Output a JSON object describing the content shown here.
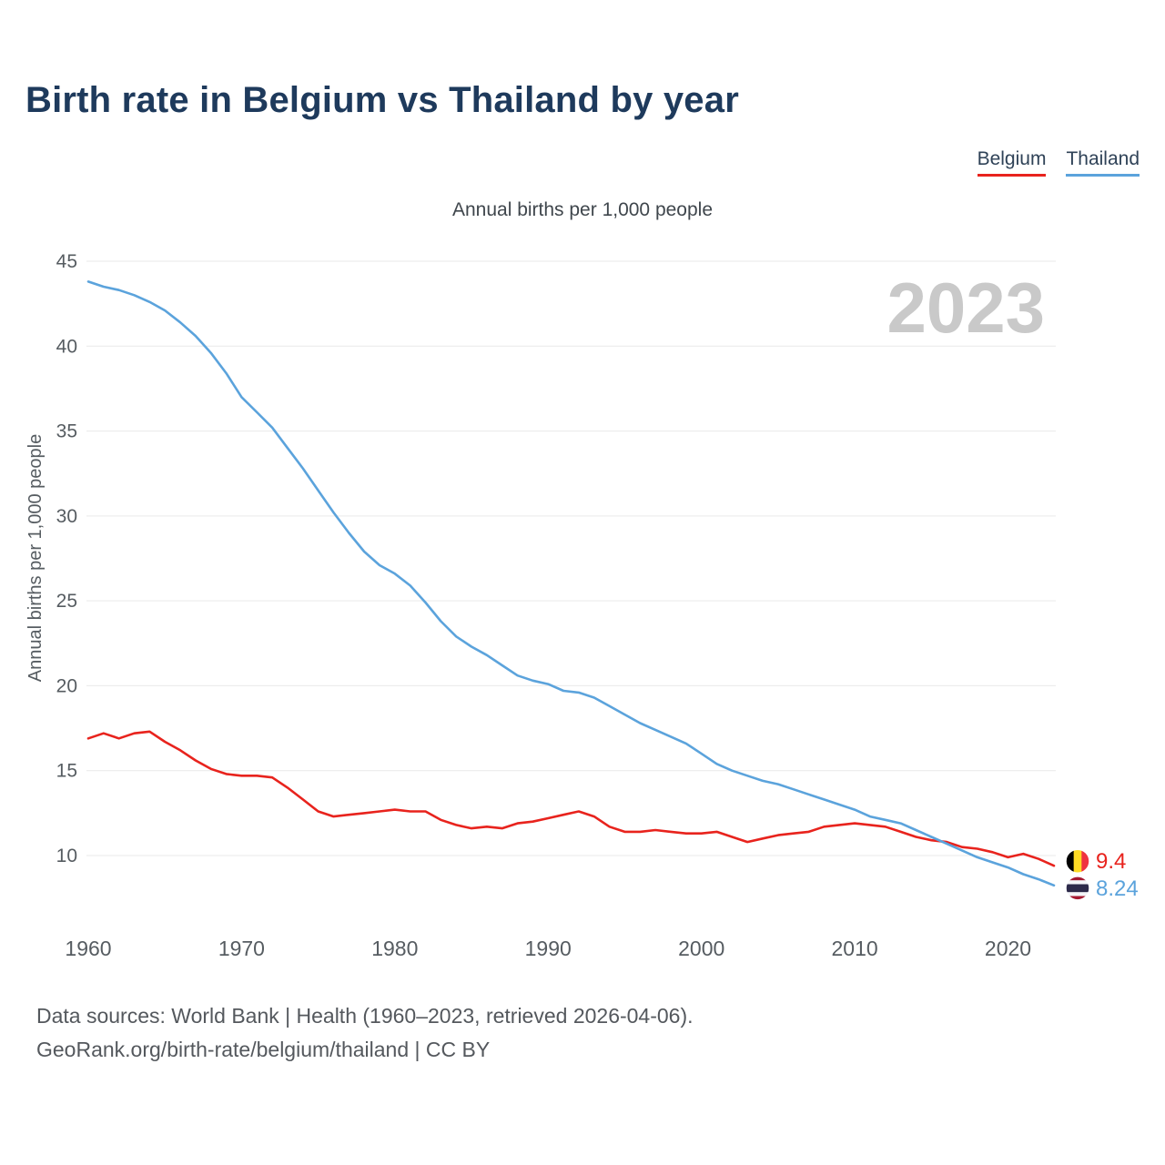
{
  "page": {
    "title": "Birth rate in Belgium vs Thailand by year",
    "footer_line1": "Data sources: World Bank | Health (1960–2023, retrieved 2026-04-06).",
    "footer_line2": "GeoRank.org/birth-rate/belgium/thailand | CC BY"
  },
  "legend": {
    "items": [
      {
        "label": "Belgium",
        "color": "#e8231d"
      },
      {
        "label": "Thailand",
        "color": "#5ba3dc"
      }
    ]
  },
  "chart_data": {
    "type": "line",
    "title": "Birth rate in Belgium vs Thailand by year",
    "subtitle": "Annual births per 1,000 people",
    "ylabel": "Annual births per 1,000 people",
    "xlabel": "",
    "watermark": "2023",
    "grid": true,
    "legend_position": "top-right",
    "yticks": [
      10,
      15,
      20,
      25,
      30,
      35,
      40,
      45
    ],
    "xticks": [
      1960,
      1970,
      1980,
      1990,
      2000,
      2010,
      2020
    ],
    "grid_range": [
      10,
      45
    ],
    "x_range": [
      1960,
      2023
    ],
    "x": [
      1960,
      1961,
      1962,
      1963,
      1964,
      1965,
      1966,
      1967,
      1968,
      1969,
      1970,
      1971,
      1972,
      1973,
      1974,
      1975,
      1976,
      1977,
      1978,
      1979,
      1980,
      1981,
      1982,
      1983,
      1984,
      1985,
      1986,
      1987,
      1988,
      1989,
      1990,
      1991,
      1992,
      1993,
      1994,
      1995,
      1996,
      1997,
      1998,
      1999,
      2000,
      2001,
      2002,
      2003,
      2004,
      2005,
      2006,
      2007,
      2008,
      2009,
      2010,
      2011,
      2012,
      2013,
      2014,
      2015,
      2016,
      2017,
      2018,
      2019,
      2020,
      2021,
      2022,
      2023
    ],
    "series": [
      {
        "id": "belgium",
        "name": "Belgium",
        "color": "#e8231d",
        "flag": "belgium",
        "end_label": "9.4",
        "values": [
          16.9,
          17.2,
          16.9,
          17.2,
          17.3,
          16.7,
          16.2,
          15.6,
          15.1,
          14.8,
          14.7,
          14.7,
          14.6,
          14.0,
          13.3,
          12.6,
          12.3,
          12.4,
          12.5,
          12.6,
          12.7,
          12.6,
          12.6,
          12.1,
          11.8,
          11.6,
          11.7,
          11.6,
          11.9,
          12.0,
          12.2,
          12.4,
          12.6,
          12.3,
          11.7,
          11.4,
          11.4,
          11.5,
          11.4,
          11.3,
          11.3,
          11.4,
          11.1,
          10.8,
          11.0,
          11.2,
          11.3,
          11.4,
          11.7,
          11.8,
          11.9,
          11.8,
          11.7,
          11.4,
          11.1,
          10.9,
          10.8,
          10.5,
          10.4,
          10.2,
          9.9,
          10.1,
          9.8,
          9.4
        ]
      },
      {
        "id": "thailand",
        "name": "Thailand",
        "color": "#5ba3dc",
        "flag": "thailand",
        "end_label": "8.24",
        "values": [
          43.8,
          43.5,
          43.3,
          43.0,
          42.6,
          42.1,
          41.4,
          40.6,
          39.6,
          38.4,
          37.0,
          36.1,
          35.2,
          34.0,
          32.8,
          31.5,
          30.2,
          29.0,
          27.9,
          27.1,
          26.6,
          25.9,
          24.9,
          23.8,
          22.9,
          22.3,
          21.8,
          21.2,
          20.6,
          20.3,
          20.1,
          19.7,
          19.6,
          19.3,
          18.8,
          18.3,
          17.8,
          17.4,
          17.0,
          16.6,
          16.0,
          15.4,
          15.0,
          14.7,
          14.4,
          14.2,
          13.9,
          13.6,
          13.3,
          13.0,
          12.7,
          12.3,
          12.1,
          11.9,
          11.5,
          11.1,
          10.7,
          10.3,
          9.9,
          9.6,
          9.3,
          8.9,
          8.6,
          8.24
        ]
      }
    ],
    "colors": {
      "grid": "#e9e9e9",
      "watermark": "#c9c9c9",
      "tick_text": "#565c61"
    }
  },
  "icons": {
    "belgium_flag_stripes": [
      "#000000",
      "#fdda24",
      "#ef3340"
    ],
    "thailand_flag_stripes": [
      "#a51931",
      "#f4f5f8",
      "#2d2a4a"
    ]
  }
}
